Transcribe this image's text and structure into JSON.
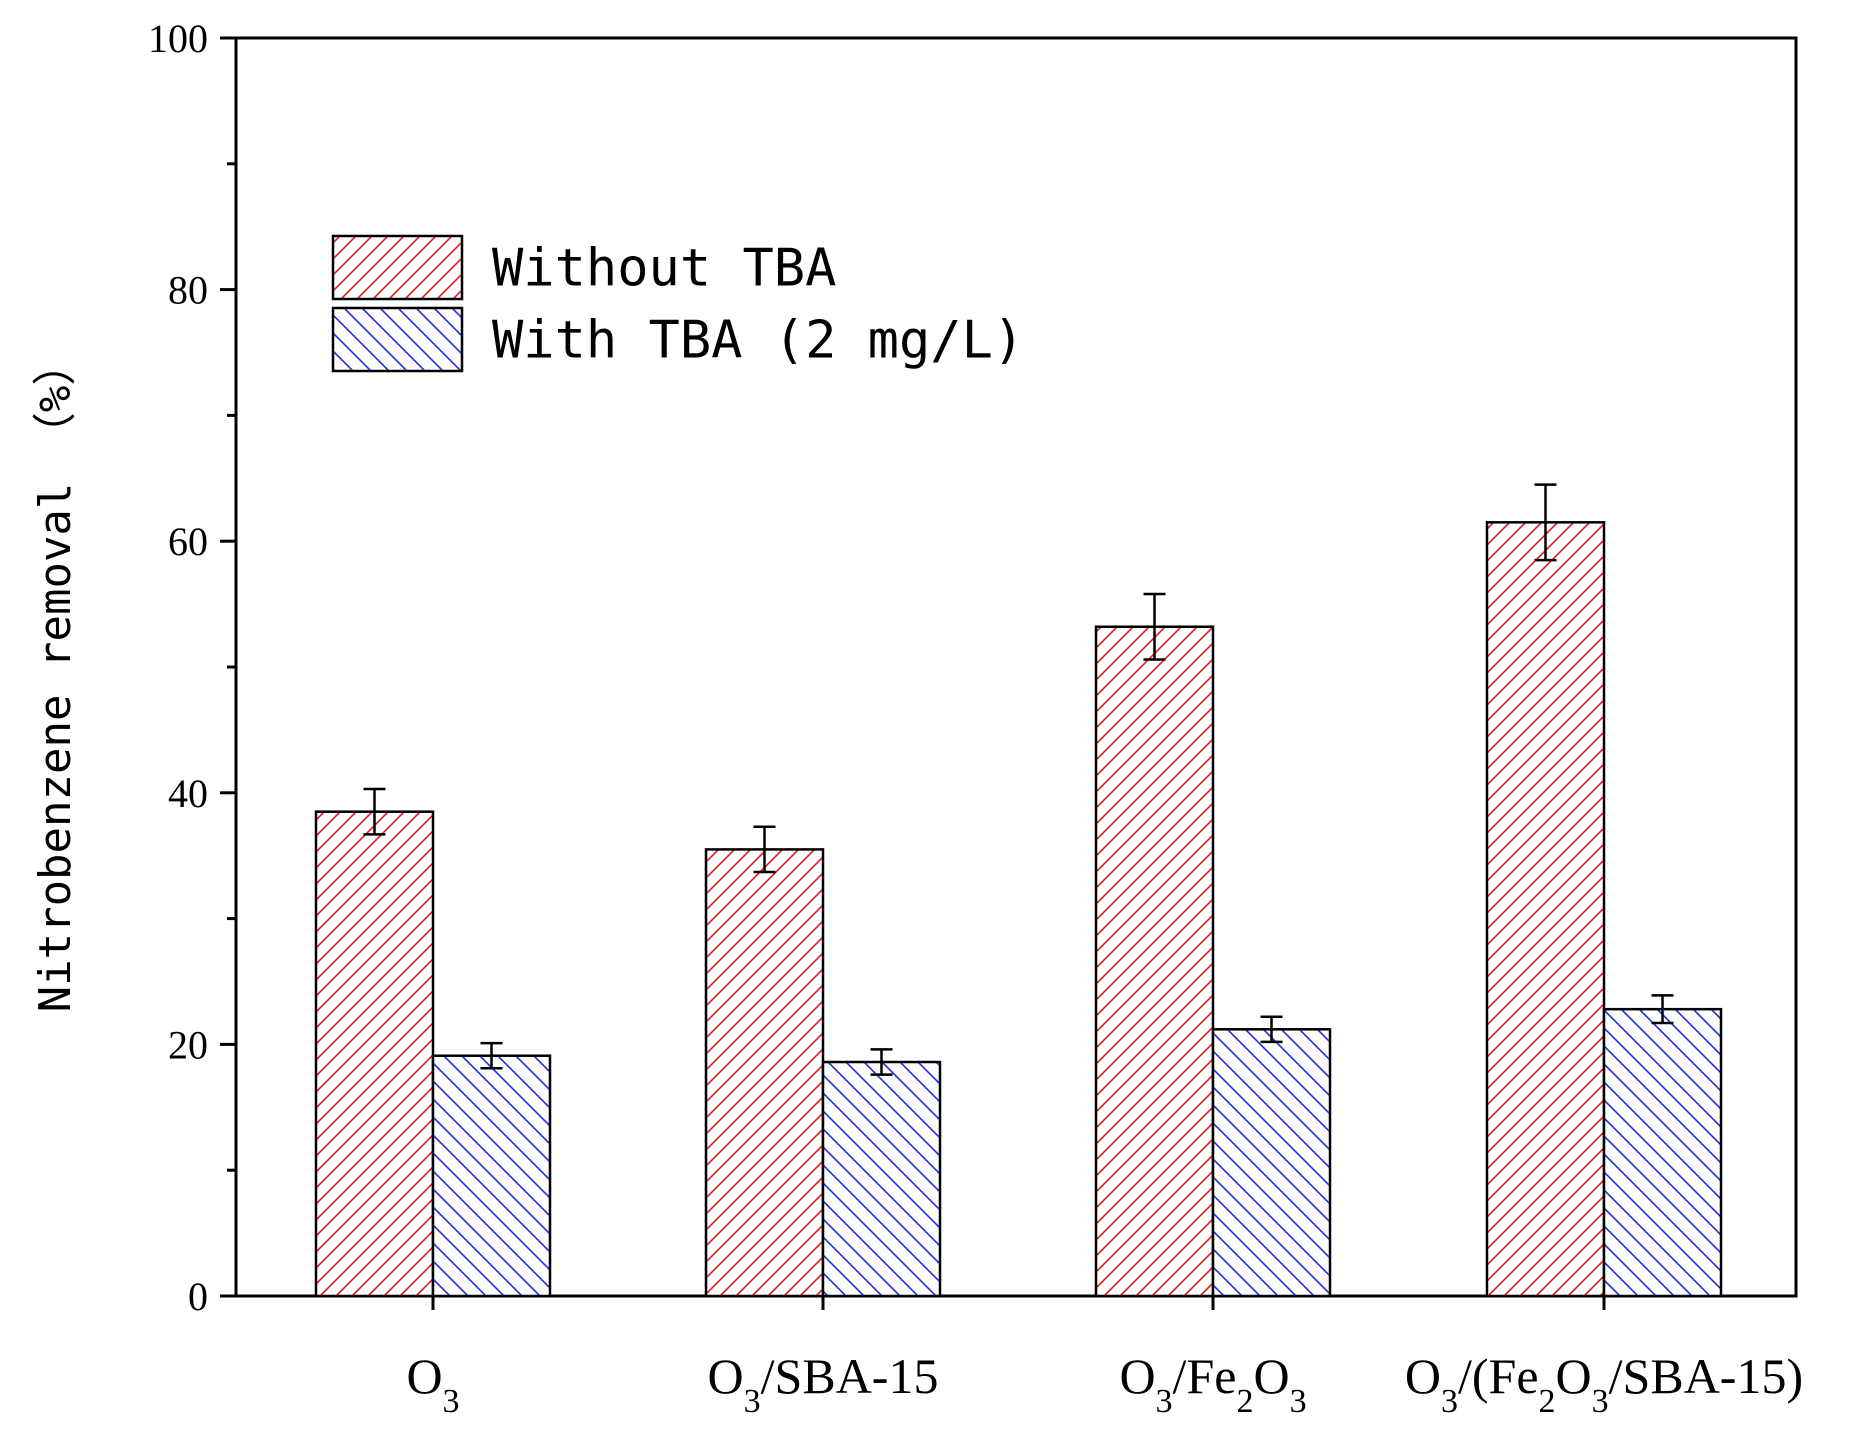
{
  "chart_data": {
    "type": "bar",
    "ylabel": "Nitrobenzene removal （%）",
    "ylim": [
      0,
      100
    ],
    "yticks": [
      0,
      20,
      40,
      60,
      80,
      100
    ],
    "categories": [
      {
        "label": "O3",
        "parts": [
          {
            "t": "O"
          },
          {
            "t": "3",
            "sub": true
          }
        ]
      },
      {
        "label": "O3/SBA-15",
        "parts": [
          {
            "t": "O"
          },
          {
            "t": "3",
            "sub": true
          },
          {
            "t": "/SBA-15"
          }
        ]
      },
      {
        "label": "O3/Fe2O3",
        "parts": [
          {
            "t": "O"
          },
          {
            "t": "3",
            "sub": true
          },
          {
            "t": "/Fe"
          },
          {
            "t": "2",
            "sub": true
          },
          {
            "t": "O"
          },
          {
            "t": "3",
            "sub": true
          }
        ]
      },
      {
        "label": "O3/(Fe2O3/SBA-15)",
        "parts": [
          {
            "t": "O"
          },
          {
            "t": "3",
            "sub": true
          },
          {
            "t": "/(Fe"
          },
          {
            "t": "2",
            "sub": true
          },
          {
            "t": "O"
          },
          {
            "t": "3",
            "sub": true
          },
          {
            "t": "/SBA-15)"
          }
        ]
      }
    ],
    "series": [
      {
        "name": "Without TBA",
        "color": "#e8191c",
        "hatch": "forward",
        "values": [
          38.5,
          35.5,
          53.2,
          61.5
        ],
        "errors": [
          1.8,
          1.8,
          2.6,
          3.0
        ]
      },
      {
        "name": "With TBA (2 mg/L)",
        "color": "#1f2fe0",
        "hatch": "backward",
        "values": [
          19.1,
          18.6,
          21.2,
          22.8
        ],
        "errors": [
          1.0,
          1.0,
          1.0,
          1.1
        ]
      }
    ],
    "legend_position": "top-left"
  }
}
